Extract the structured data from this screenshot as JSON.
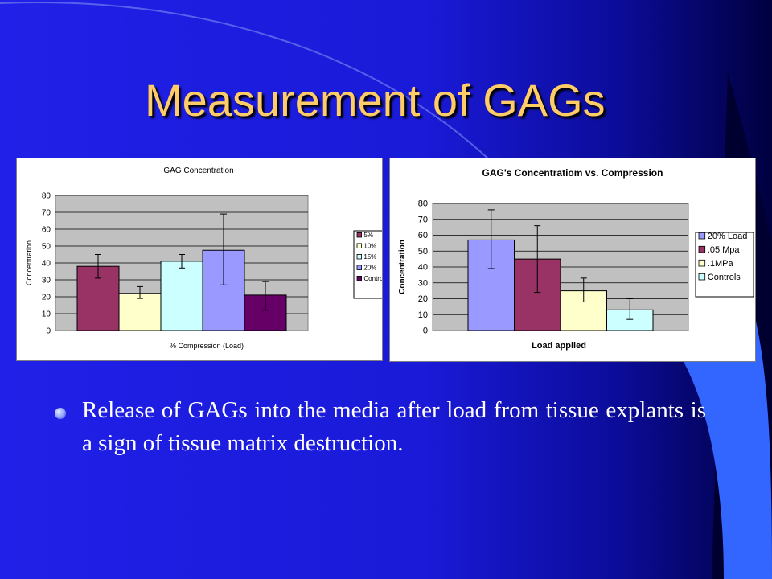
{
  "slide": {
    "title": "Measurement of GAGs",
    "bullet": "Release of GAGs into the media after load from tissue explants is a sign of tissue matrix destruction."
  },
  "chart_data": [
    {
      "type": "bar",
      "title": "GAG Concentration",
      "xlabel": "% Compression (Load)",
      "ylabel": "Concentration",
      "ylim": [
        0,
        80
      ],
      "yticks": [
        "0",
        "10",
        "20",
        "30",
        "40",
        "50",
        "60",
        "70",
        "80"
      ],
      "grid": true,
      "legend_position": "right",
      "series": [
        {
          "name": "5%",
          "value": 38,
          "error": [
            31,
            45
          ],
          "color": "#993366"
        },
        {
          "name": "10%",
          "value": 22,
          "error": [
            19,
            26
          ],
          "color": "#ffffcc"
        },
        {
          "name": "15%",
          "value": 41,
          "error": [
            37,
            45
          ],
          "color": "#ccffff"
        },
        {
          "name": "20%",
          "value": 47.5,
          "error": [
            27,
            69
          ],
          "color": "#9999ff"
        },
        {
          "name": "Controls",
          "value": 21,
          "error": [
            12,
            29
          ],
          "color": "#660066"
        }
      ]
    },
    {
      "type": "bar",
      "title": "GAG's Concentratiom vs. Compression",
      "xlabel": "Load applied",
      "ylabel": "Concentration",
      "ylim": [
        0,
        80
      ],
      "yticks": [
        "0",
        "10",
        "20",
        "30",
        "40",
        "50",
        "60",
        "70",
        "80"
      ],
      "grid": true,
      "legend_position": "right",
      "series": [
        {
          "name": "20% Load",
          "value": 57,
          "error": [
            39,
            76
          ],
          "color": "#9999ff"
        },
        {
          "name": ".05 Mpa",
          "value": 45,
          "error": [
            24,
            66
          ],
          "color": "#993366"
        },
        {
          "name": ".1MPa",
          "value": 25,
          "error": [
            18,
            33
          ],
          "color": "#ffffcc"
        },
        {
          "name": "Controls",
          "value": 13,
          "error": [
            7,
            20
          ],
          "color": "#ccffff"
        }
      ]
    }
  ]
}
